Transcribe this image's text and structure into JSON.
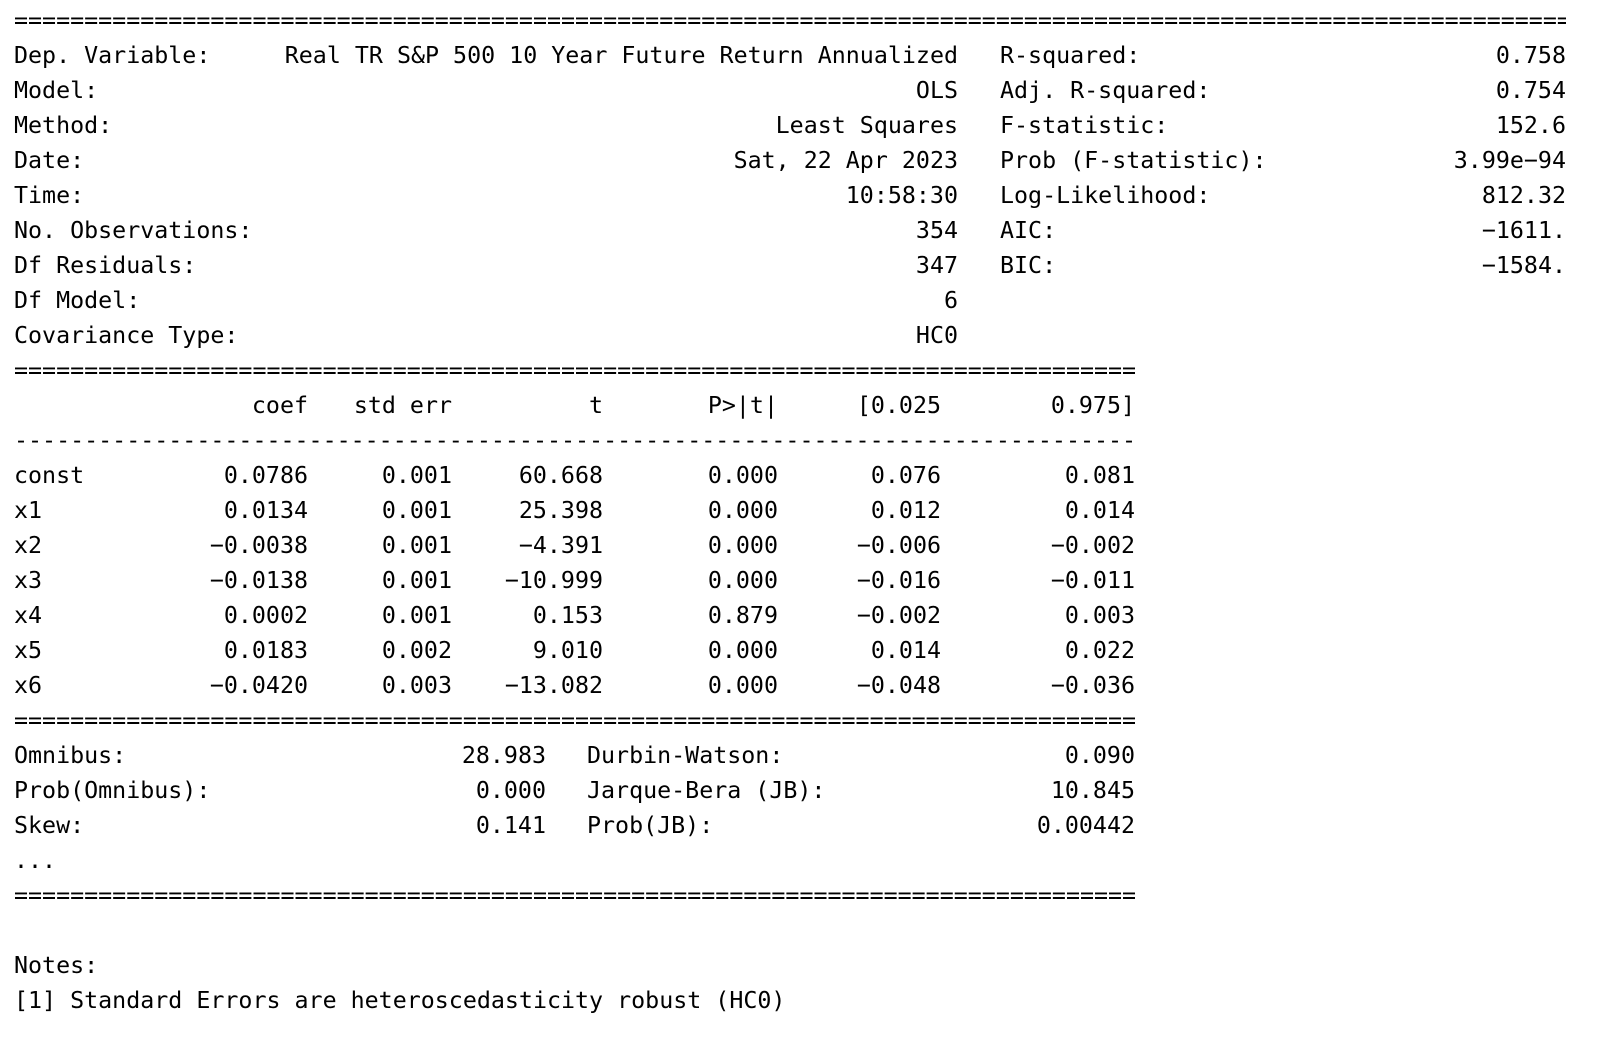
{
  "separators": {
    "double": "======================================================================================================================",
    "single": "----------------------------------------------------------------------------------------------------------------------"
  },
  "header": {
    "rows": [
      {
        "llabel": "Dep. Variable:",
        "lvalue": "Real TR S&P 500 10 Year Future Return Annualized",
        "rlabel": "R-squared:",
        "rvalue": "0.758"
      },
      {
        "llabel": "Model:",
        "lvalue": "OLS",
        "rlabel": "Adj. R-squared:",
        "rvalue": "0.754"
      },
      {
        "llabel": "Method:",
        "lvalue": "Least Squares",
        "rlabel": "F-statistic:",
        "rvalue": "152.6"
      },
      {
        "llabel": "Date:",
        "lvalue": "Sat, 22 Apr 2023",
        "rlabel": "Prob (F-statistic):",
        "rvalue": "3.99e−94"
      },
      {
        "llabel": "Time:",
        "lvalue": "10:58:30",
        "rlabel": "Log-Likelihood:",
        "rvalue": "812.32"
      },
      {
        "llabel": "No. Observations:",
        "lvalue": "354",
        "rlabel": "AIC:",
        "rvalue": "−1611."
      },
      {
        "llabel": "Df Residuals:",
        "lvalue": "347",
        "rlabel": "BIC:",
        "rvalue": "−1584."
      },
      {
        "llabel": "Df Model:",
        "lvalue": "6",
        "rlabel": "",
        "rvalue": ""
      },
      {
        "llabel": "Covariance Type:",
        "lvalue": "HC0",
        "rlabel": "",
        "rvalue": ""
      }
    ]
  },
  "coef_table": {
    "columns": {
      "stub": "",
      "coef": "coef",
      "std_err": "std err",
      "t": "t",
      "p": "P>|t|",
      "ci_low": "[0.025",
      "ci_high": "0.975]"
    },
    "rows": [
      {
        "name": "const",
        "coef": "0.0786",
        "std_err": "0.001",
        "t": "60.668",
        "p": "0.000",
        "ci_low": "0.076",
        "ci_high": "0.081"
      },
      {
        "name": "x1",
        "coef": "0.0134",
        "std_err": "0.001",
        "t": "25.398",
        "p": "0.000",
        "ci_low": "0.012",
        "ci_high": "0.014"
      },
      {
        "name": "x2",
        "coef": "−0.0038",
        "std_err": "0.001",
        "t": "−4.391",
        "p": "0.000",
        "ci_low": "−0.006",
        "ci_high": "−0.002"
      },
      {
        "name": "x3",
        "coef": "−0.0138",
        "std_err": "0.001",
        "t": "−10.999",
        "p": "0.000",
        "ci_low": "−0.016",
        "ci_high": "−0.011"
      },
      {
        "name": "x4",
        "coef": "0.0002",
        "std_err": "0.001",
        "t": "0.153",
        "p": "0.879",
        "ci_low": "−0.002",
        "ci_high": "0.003"
      },
      {
        "name": "x5",
        "coef": "0.0183",
        "std_err": "0.002",
        "t": "9.010",
        "p": "0.000",
        "ci_low": "0.014",
        "ci_high": "0.022"
      },
      {
        "name": "x6",
        "coef": "−0.0420",
        "std_err": "0.003",
        "t": "−13.082",
        "p": "0.000",
        "ci_low": "−0.048",
        "ci_high": "−0.036"
      }
    ]
  },
  "diagnostics": {
    "rows": [
      {
        "llabel": "Omnibus:",
        "lvalue": "28.983",
        "rlabel": "Durbin-Watson:",
        "rvalue": "0.090"
      },
      {
        "llabel": "Prob(Omnibus):",
        "lvalue": "0.000",
        "rlabel": "Jarque-Bera (JB):",
        "rvalue": "10.845"
      },
      {
        "llabel": "Skew:",
        "lvalue": "0.141",
        "rlabel": "Prob(JB):",
        "rvalue": "0.00442"
      }
    ],
    "truncation": "..."
  },
  "notes": {
    "title": "Notes:",
    "line1": "[1] Standard Errors are heteroscedasticity robust (HC0)"
  }
}
